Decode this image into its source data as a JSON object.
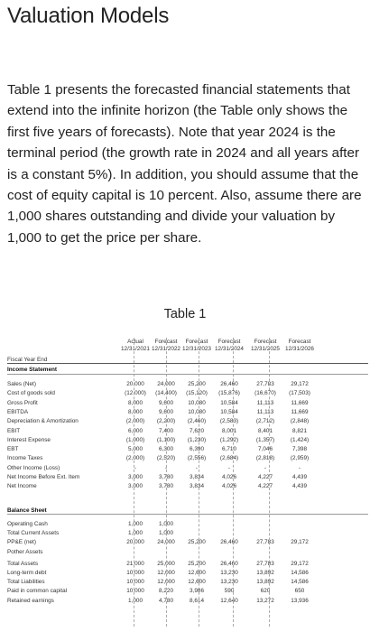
{
  "title": "Valuation Models",
  "paragraph": "Table 1 presents the forecasted financial statements that extend into the infinite horizon (the Table only shows the first five years of forecasts). Note that year 2024 is the terminal period (the growth rate in 2024 and all years after is a constant 5%). In addition, you should assume that the cost of equity capital is 10 percent. Also, assume there are 1,000 shares outstanding and divide your valuation by 1,000 to get the price per share.",
  "table_caption": "Table 1",
  "table": {
    "header_top": [
      "Actual",
      "Forecast",
      "Forecast",
      "Forecast",
      "Forecast",
      "Forecast"
    ],
    "header_dates": [
      "12/31/2021",
      "12/31/2022",
      "12/31/2023",
      "12/31/2024",
      "12/31/2025",
      "12/31/2026"
    ],
    "fiscal_label": "Fiscal Year End",
    "income_header": "Income Statement",
    "income_rows": [
      {
        "label": "Sales (Net)",
        "values": [
          "20,000",
          "24,000",
          "25,200",
          "26,460",
          "27,783",
          "29,172"
        ]
      },
      {
        "label": "Cost of goods sold",
        "values": [
          "(12,000)",
          "(14,400)",
          "(15,120)",
          "(15,876)",
          "(16,670)",
          "(17,503)"
        ]
      },
      {
        "label": "Gross Profit",
        "values": [
          "8,000",
          "9,600",
          "10,080",
          "10,584",
          "11,113",
          "11,669"
        ]
      },
      {
        "label": "EBITDA",
        "values": [
          "8,000",
          "9,600",
          "10,080",
          "10,584",
          "11,113",
          "11,669"
        ]
      },
      {
        "label": "Depreciation & Amortization",
        "values": [
          "(2,000)",
          "(2,200)",
          "(2,460)",
          "(2,583)",
          "(2,712)",
          "(2,848)"
        ]
      },
      {
        "label": "EBIT",
        "values": [
          "6,000",
          "7,400",
          "7,620",
          "8,001",
          "8,401",
          "8,821"
        ]
      },
      {
        "label": "Interest Expense",
        "values": [
          "(1,000)",
          "(1,100)",
          "(1,230)",
          "(1,292)",
          "(1,357)",
          "(1,424)"
        ]
      },
      {
        "label": "EBT",
        "values": [
          "5,000",
          "6,300",
          "6,390",
          "6,710",
          "7,046",
          "7,398"
        ]
      },
      {
        "label": "Income Taxes",
        "values": [
          "(2,000)",
          "(2,520)",
          "(2,556)",
          "(2,684)",
          "(2,818)",
          "(2,959)"
        ]
      },
      {
        "label": "Other Income (Loss)",
        "values": [
          "-",
          "-",
          "-",
          "-",
          "-",
          "-"
        ]
      },
      {
        "label": "Net Income Before Ext. Item",
        "values": [
          "3,000",
          "3,780",
          "3,834",
          "4,026",
          "4,227",
          "4,439"
        ]
      },
      {
        "label": "Net Income",
        "values": [
          "3,000",
          "3,780",
          "3,834",
          "4,026",
          "4,227",
          "4,439"
        ]
      }
    ],
    "balance_header": "Balance Sheet",
    "balance_rows": [
      {
        "label": "Operating Cash",
        "values": [
          "1,000",
          "1,000",
          "",
          "",
          "",
          ""
        ]
      },
      {
        "label": "Total Current Assets",
        "values": [
          "1,000",
          "1,000",
          "",
          "",
          "",
          ""
        ]
      },
      {
        "label": "PP&E (net)",
        "values": [
          "20,000",
          "24,000",
          "25,200",
          "26,460",
          "27,783",
          "29,172"
        ]
      },
      {
        "label": "Pother Assets",
        "values": [
          "",
          "",
          "",
          "",
          "",
          ""
        ]
      },
      {
        "label": "Total Assets",
        "values": [
          "21,000",
          "25,000",
          "25,200",
          "26,460",
          "27,783",
          "29,172"
        ]
      },
      {
        "label": "Long-term debt",
        "values": [
          "10,000",
          "12,000",
          "12,600",
          "13,230",
          "13,892",
          "14,586"
        ]
      },
      {
        "label": "Total Liabilities",
        "values": [
          "10,000",
          "12,000",
          "12,600",
          "13,230",
          "13,892",
          "14,586"
        ]
      },
      {
        "label": "Paid in common capital",
        "values": [
          "10,000",
          "8,220",
          "3,986",
          "590",
          "620",
          "650"
        ]
      },
      {
        "label": "Retained earnings",
        "values": [
          "1,000",
          "4,780",
          "8,614",
          "12,640",
          "13,272",
          "13,936"
        ]
      }
    ]
  }
}
